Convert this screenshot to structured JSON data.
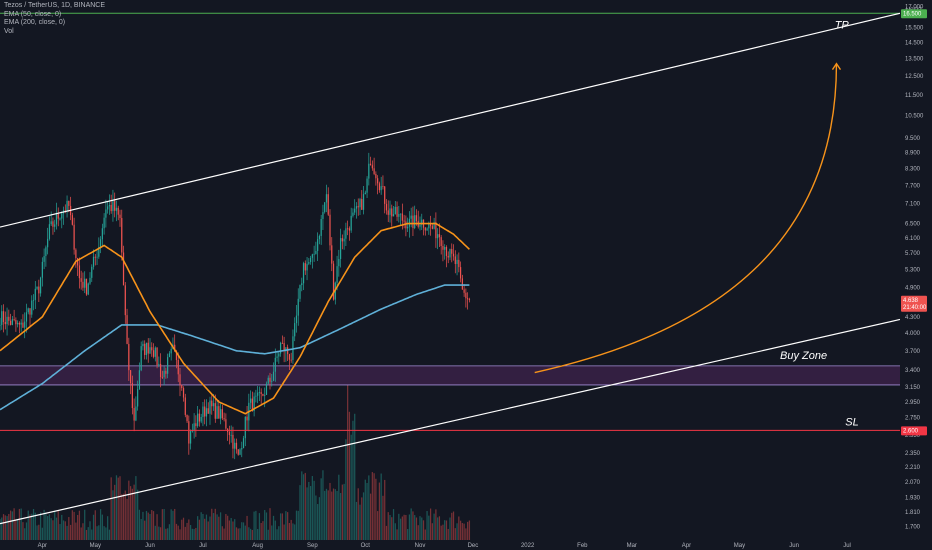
{
  "legend": {
    "symbol": "Tezos / TetherUS, 1D, BINANCE",
    "ema50": "EMA (50, close, 0)",
    "ema200": "EMA (200, close, 0)",
    "vol": "Vol"
  },
  "colors": {
    "background": "#131722",
    "up_candle": "#26a69a",
    "down_candle": "#ef5350",
    "ema50": "#f7931a",
    "ema200": "#5fb0d8",
    "channel": "#ffffff",
    "tp_line": "#4caf50",
    "sl_line": "#f23645",
    "buy_zone_fill": "#3a2147",
    "buy_zone_border": "#a38ed6",
    "arrow": "#f7931a",
    "current_price_tag": "#ef5350",
    "axis_text": "#b2b5be"
  },
  "chart_data": {
    "type": "candlestick",
    "title": "Tezos / TetherUS, 1D, BINANCE",
    "y_scale": "log",
    "ylim": [
      1.6,
      17.5
    ],
    "y_ticks": [
      "17.000",
      "15.500",
      "14.500",
      "13.500",
      "12.500",
      "11.500",
      "10.500",
      "9.500",
      "8.900",
      "8.300",
      "7.700",
      "7.100",
      "6.500",
      "6.100",
      "5.700",
      "5.300",
      "4.900",
      "4.300",
      "4.000",
      "3.700",
      "3.400",
      "3.150",
      "2.950",
      "2.750",
      "2.550",
      "2.350",
      "2.210",
      "2.070",
      "1.930",
      "1.810",
      "1.700",
      "1.595"
    ],
    "y_tick_values": [
      17.0,
      15.5,
      14.5,
      13.5,
      12.5,
      11.5,
      10.5,
      9.5,
      8.9,
      8.3,
      7.7,
      7.1,
      6.5,
      6.1,
      5.7,
      5.3,
      4.9,
      4.3,
      4.0,
      3.7,
      3.4,
      3.15,
      2.95,
      2.75,
      2.55,
      2.35,
      2.21,
      2.07,
      1.93,
      1.81,
      1.7,
      1.595
    ],
    "y_axis_unit": "USDT",
    "x_ticks": [
      "Apr",
      "May",
      "Jun",
      "Jul",
      "Aug",
      "Sep",
      "Oct",
      "Nov",
      "Dec",
      "2022",
      "Feb",
      "Mar",
      "Apr",
      "May",
      "Jun",
      "Jul"
    ],
    "x_tick_dates": [
      "2021-04-01",
      "2021-05-01",
      "2021-06-01",
      "2021-07-01",
      "2021-08-01",
      "2021-09-01",
      "2021-10-01",
      "2021-11-01",
      "2021-12-01",
      "2022-01-01",
      "2022-02-01",
      "2022-03-01",
      "2022-04-01",
      "2022-05-01",
      "2022-06-01",
      "2022-07-01"
    ],
    "x_range": [
      "2021-03-08",
      "2022-07-31"
    ],
    "close_keypoints": [
      [
        "2021-03-08",
        4.3
      ],
      [
        "2021-03-20",
        4.1
      ],
      [
        "2021-03-30",
        4.9
      ],
      [
        "2021-04-05",
        6.3
      ],
      [
        "2021-04-12",
        6.9
      ],
      [
        "2021-04-16",
        7.0
      ],
      [
        "2021-04-22",
        5.1
      ],
      [
        "2021-04-26",
        4.9
      ],
      [
        "2021-05-03",
        5.9
      ],
      [
        "2021-05-07",
        7.0
      ],
      [
        "2021-05-11",
        7.0
      ],
      [
        "2021-05-15",
        6.6
      ],
      [
        "2021-05-19",
        3.7
      ],
      [
        "2021-05-23",
        2.7
      ],
      [
        "2021-05-27",
        3.7
      ],
      [
        "2021-06-02",
        3.8
      ],
      [
        "2021-06-08",
        3.3
      ],
      [
        "2021-06-14",
        3.7
      ],
      [
        "2021-06-20",
        3.1
      ],
      [
        "2021-06-23",
        2.5
      ],
      [
        "2021-06-27",
        2.7
      ],
      [
        "2021-07-04",
        2.9
      ],
      [
        "2021-07-10",
        2.8
      ],
      [
        "2021-07-16",
        2.6
      ],
      [
        "2021-07-21",
        2.3
      ],
      [
        "2021-07-27",
        2.9
      ],
      [
        "2021-08-03",
        3.0
      ],
      [
        "2021-08-09",
        3.3
      ],
      [
        "2021-08-14",
        3.8
      ],
      [
        "2021-08-20",
        3.6
      ],
      [
        "2021-08-27",
        5.4
      ],
      [
        "2021-09-01",
        5.5
      ],
      [
        "2021-09-05",
        6.3
      ],
      [
        "2021-09-09",
        7.4
      ],
      [
        "2021-09-13",
        4.8
      ],
      [
        "2021-09-17",
        6.0
      ],
      [
        "2021-09-23",
        6.6
      ],
      [
        "2021-09-27",
        6.9
      ],
      [
        "2021-10-01",
        7.4
      ],
      [
        "2021-10-04",
        8.7
      ],
      [
        "2021-10-08",
        8.0
      ],
      [
        "2021-10-14",
        6.9
      ],
      [
        "2021-10-20",
        6.7
      ],
      [
        "2021-10-26",
        6.5
      ],
      [
        "2021-11-01",
        6.6
      ],
      [
        "2021-11-07",
        6.4
      ],
      [
        "2021-11-12",
        6.2
      ],
      [
        "2021-11-17",
        5.7
      ],
      [
        "2021-11-22",
        5.4
      ],
      [
        "2021-11-25",
        4.8
      ],
      [
        "2021-11-29",
        4.64
      ]
    ],
    "last_candle_date": "2021-11-29",
    "current_price": "4.638",
    "countdown": "21:40:00",
    "ema50_keypoints": [
      [
        "2021-03-08",
        3.7
      ],
      [
        "2021-04-01",
        4.3
      ],
      [
        "2021-04-20",
        5.5
      ],
      [
        "2021-05-06",
        5.9
      ],
      [
        "2021-05-16",
        5.6
      ],
      [
        "2021-06-01",
        4.4
      ],
      [
        "2021-06-20",
        3.5
      ],
      [
        "2021-07-10",
        2.95
      ],
      [
        "2021-07-25",
        2.8
      ],
      [
        "2021-08-10",
        3.0
      ],
      [
        "2021-08-25",
        3.6
      ],
      [
        "2021-09-10",
        4.6
      ],
      [
        "2021-09-25",
        5.6
      ],
      [
        "2021-10-10",
        6.3
      ],
      [
        "2021-10-25",
        6.5
      ],
      [
        "2021-11-10",
        6.5
      ],
      [
        "2021-11-20",
        6.2
      ],
      [
        "2021-11-29",
        5.8
      ]
    ],
    "ema200_keypoints": [
      [
        "2021-03-08",
        2.85
      ],
      [
        "2021-04-01",
        3.2
      ],
      [
        "2021-04-25",
        3.7
      ],
      [
        "2021-05-16",
        4.15
      ],
      [
        "2021-06-05",
        4.15
      ],
      [
        "2021-06-25",
        3.95
      ],
      [
        "2021-07-20",
        3.7
      ],
      [
        "2021-08-05",
        3.65
      ],
      [
        "2021-08-25",
        3.75
      ],
      [
        "2021-09-15",
        4.05
      ],
      [
        "2021-10-10",
        4.45
      ],
      [
        "2021-10-30",
        4.75
      ],
      [
        "2021-11-15",
        4.95
      ],
      [
        "2021-11-29",
        4.95
      ]
    ],
    "volume": {
      "max_label": "",
      "profile": "volume spikes in late Sep 2021 and early Oct 2021, elevated mid May and late Aug"
    },
    "annotations": {
      "tp_label": "TP",
      "tp_price": "16.500",
      "tp_value": 16.5,
      "sl_label": "SL",
      "sl_price": "2.600",
      "sl_value": 2.6,
      "buy_zone_label": "Buy Zone",
      "buy_zone_range": [
        3.18,
        3.46
      ],
      "upper_channel": [
        [
          "2021-03-08",
          6.4
        ],
        [
          "2022-07-31",
          16.5
        ]
      ],
      "lower_channel": [
        [
          "2021-03-08",
          1.72
        ],
        [
          "2022-07-31",
          4.25
        ]
      ],
      "arrow": {
        "from": [
          "2022-01-05",
          3.36
        ],
        "to": [
          "2022-06-25",
          13.2
        ]
      }
    }
  }
}
